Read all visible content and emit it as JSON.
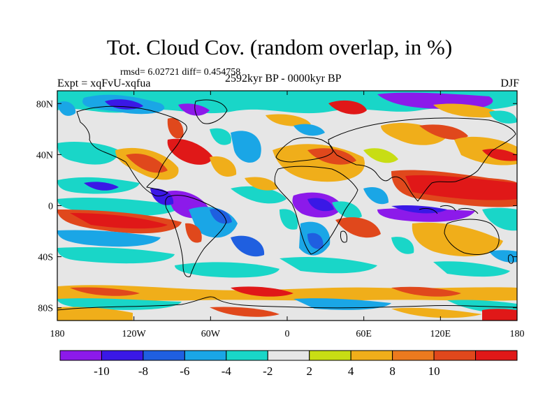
{
  "header": {
    "title": "Tot. Cloud Cov. (random overlap, in %)",
    "stats": "rmsd= 6.02721 diff= 0.454758",
    "experiment": "Expt = xqFvU-xqfua",
    "period": "2592kyr BP - 0000kyr BP",
    "season": "DJF"
  },
  "axes": {
    "y_ticks": [
      {
        "label": "80N",
        "lat": 80
      },
      {
        "label": "40N",
        "lat": 40
      },
      {
        "label": "0",
        "lat": 0
      },
      {
        "label": "40S",
        "lat": -40
      },
      {
        "label": "80S",
        "lat": -80
      }
    ],
    "x_ticks": [
      {
        "label": "180",
        "lon": -180
      },
      {
        "label": "120W",
        "lon": -120
      },
      {
        "label": "60W",
        "lon": -60
      },
      {
        "label": "0",
        "lon": 0
      },
      {
        "label": "60E",
        "lon": 60
      },
      {
        "label": "120E",
        "lon": 120
      },
      {
        "label": "180",
        "lon": 180
      }
    ],
    "lon_range": [
      -180,
      180
    ],
    "lat_range": [
      -90,
      90
    ]
  },
  "colorbar": {
    "colors": [
      "#8c1aea",
      "#3a18e6",
      "#1f5fe0",
      "#1aa6e6",
      "#19d6c8",
      "#e6e6e6",
      "#c8dd14",
      "#f0ae1a",
      "#ec7a1e",
      "#e0481c",
      "#e01818"
    ],
    "labels": [
      "-10",
      "-8",
      "-6",
      "-4",
      "-2",
      "2",
      "4",
      "8",
      "10"
    ]
  }
}
